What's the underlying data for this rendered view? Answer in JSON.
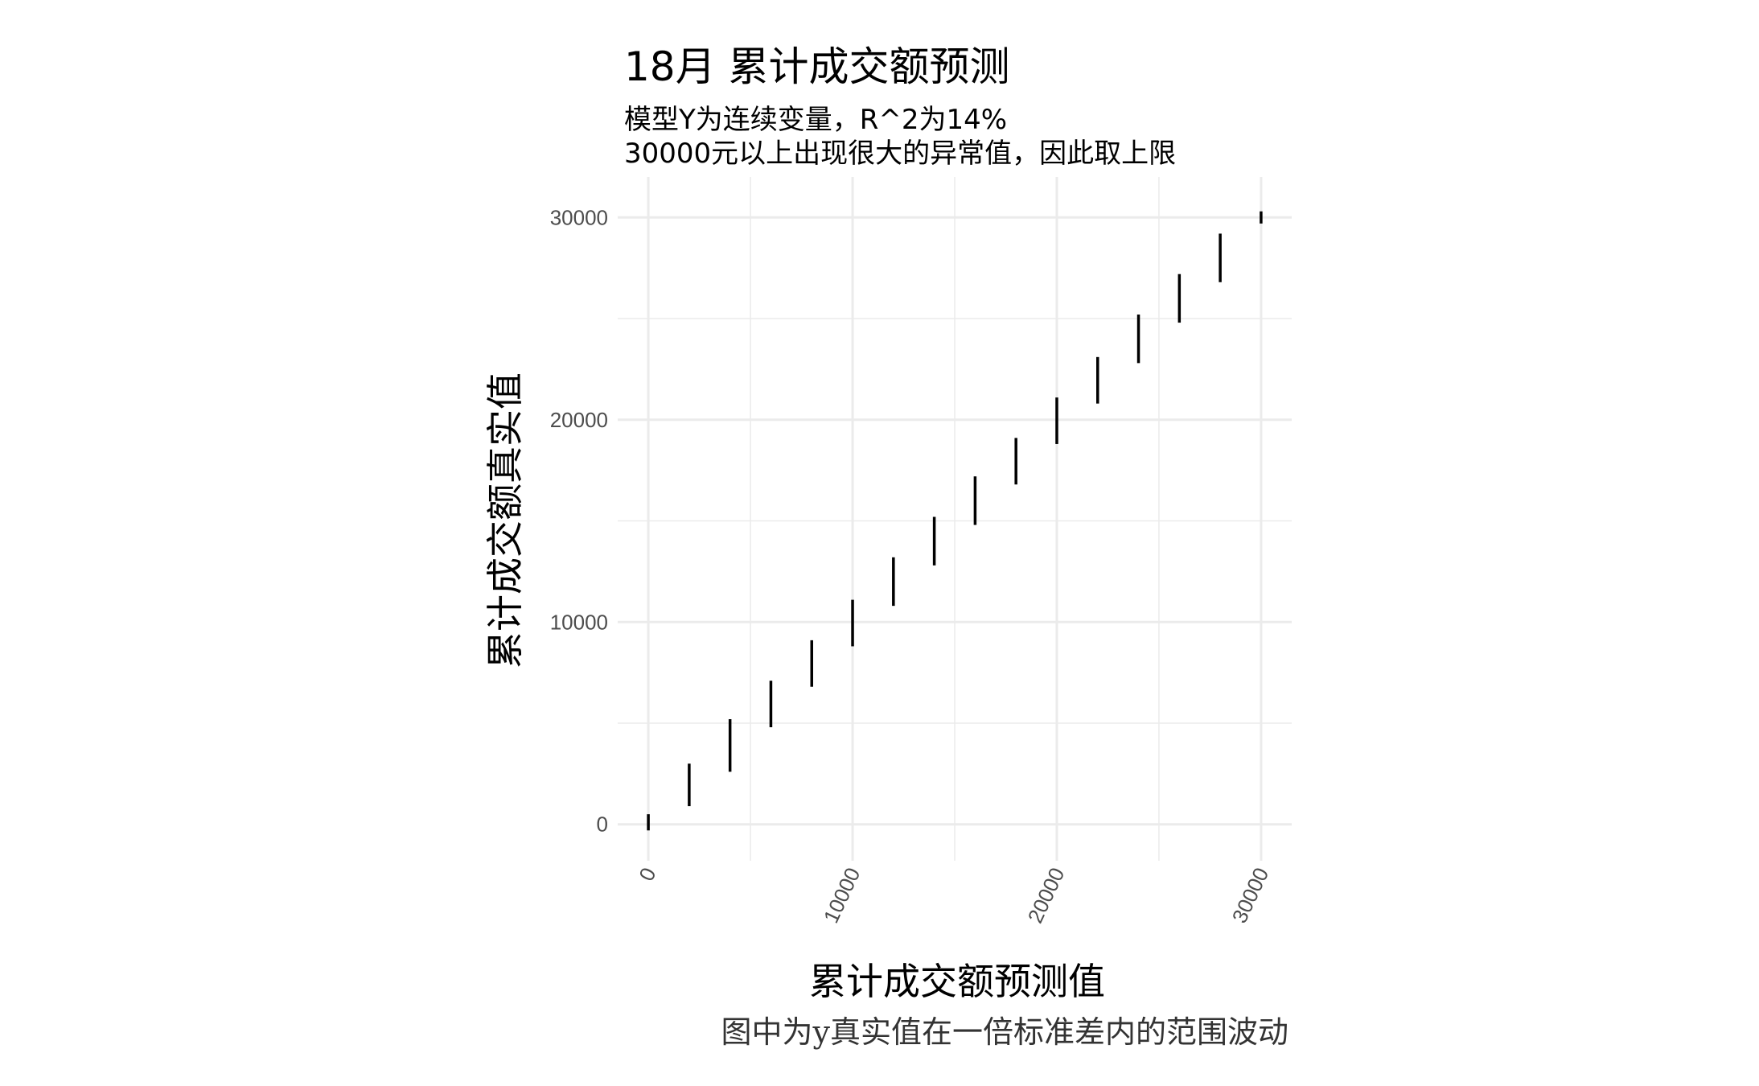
{
  "chart_data": {
    "type": "errorbar",
    "title": "18月 累计成交额预测",
    "subtitle_lines": [
      "模型Y为连续变量，R^2为14%",
      "30000元以上出现很大的异常值，因此取上限"
    ],
    "xlabel": "累计成交额预测值",
    "ylabel": "累计成交额真实值",
    "caption": "图中为y真实值在一倍标准差内的范围波动",
    "xlim": [
      -1500,
      31500
    ],
    "ylim": [
      -1800,
      32000
    ],
    "x_ticks": [
      0,
      10000,
      20000,
      30000
    ],
    "y_ticks": [
      0,
      10000,
      20000,
      30000
    ],
    "grid": true,
    "bar_color": "#000000",
    "grid_color": "#ebebeb",
    "x": [
      0,
      2000,
      4000,
      6000,
      8000,
      10000,
      12000,
      14000,
      16000,
      18000,
      20000,
      22000,
      24000,
      26000,
      28000,
      30000
    ],
    "ymin": [
      -300,
      900,
      2600,
      4800,
      6800,
      8800,
      10800,
      12800,
      14800,
      16800,
      18800,
      20800,
      22800,
      24800,
      26800,
      29700
    ],
    "ymax": [
      500,
      3000,
      5200,
      7100,
      9100,
      11100,
      13200,
      15200,
      17200,
      19100,
      21100,
      23100,
      25200,
      27200,
      29200,
      30300
    ]
  }
}
